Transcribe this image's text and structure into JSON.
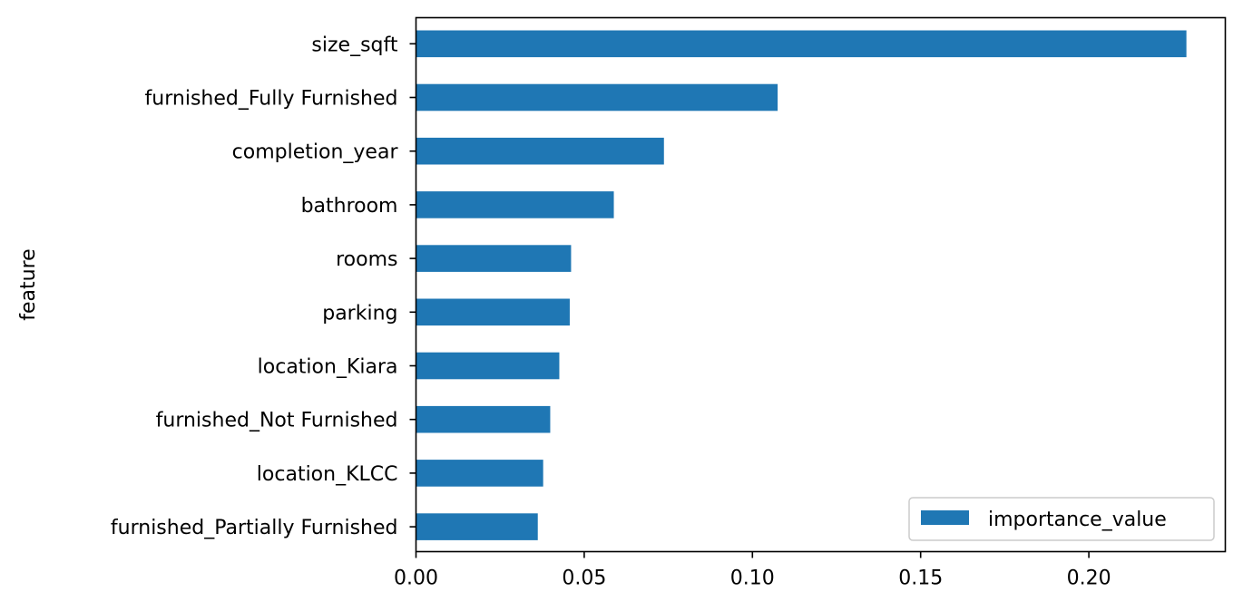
{
  "chart_data": {
    "type": "bar",
    "orientation": "horizontal",
    "categories": [
      "size_sqft",
      "furnished_Fully Furnished",
      "completion_year",
      "bathroom",
      "rooms",
      "parking",
      "location_Kiara",
      "furnished_Not Furnished",
      "location_KLCC",
      "furnished_Partially Furnished"
    ],
    "series": [
      {
        "name": "importance_value",
        "color": "#1f77b4",
        "values": [
          0.229,
          0.1075,
          0.0737,
          0.0588,
          0.0461,
          0.0457,
          0.0426,
          0.0399,
          0.0378,
          0.0362
        ]
      }
    ],
    "xticks": [
      "0.00",
      "0.05",
      "0.10",
      "0.15",
      "0.20"
    ],
    "xlim": [
      0,
      0.2405
    ],
    "xlabel": "",
    "ylabel": "feature",
    "title": "",
    "grid": false,
    "legend_position": "lower right"
  }
}
